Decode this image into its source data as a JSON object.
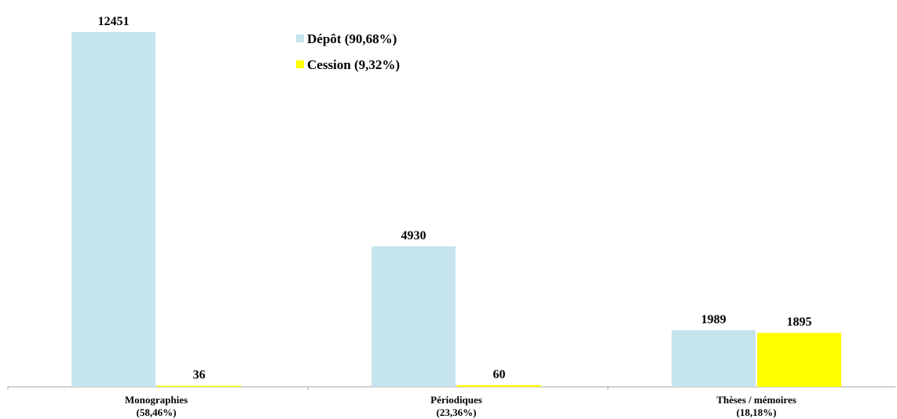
{
  "chart_data": {
    "type": "bar",
    "categories": [
      "Monographies",
      "Périodiques",
      "Thèses / mémoires"
    ],
    "category_sublabels": [
      "(58,46%)",
      "(23,36%)",
      "(18,18%)"
    ],
    "series": [
      {
        "name": "Dépôt (90,68%)",
        "values": [
          12451,
          4930,
          1989
        ],
        "color": "#c5e4ed"
      },
      {
        "name": "Cession (9,32%)",
        "values": [
          36,
          60,
          1895
        ],
        "color": "#ffff00"
      }
    ],
    "data_labels": [
      [
        "12451",
        "4930",
        "1989"
      ],
      [
        "36",
        "60",
        "1895"
      ]
    ],
    "ylim": [
      0,
      12451
    ],
    "legend_position": "top-center",
    "grid": false
  }
}
